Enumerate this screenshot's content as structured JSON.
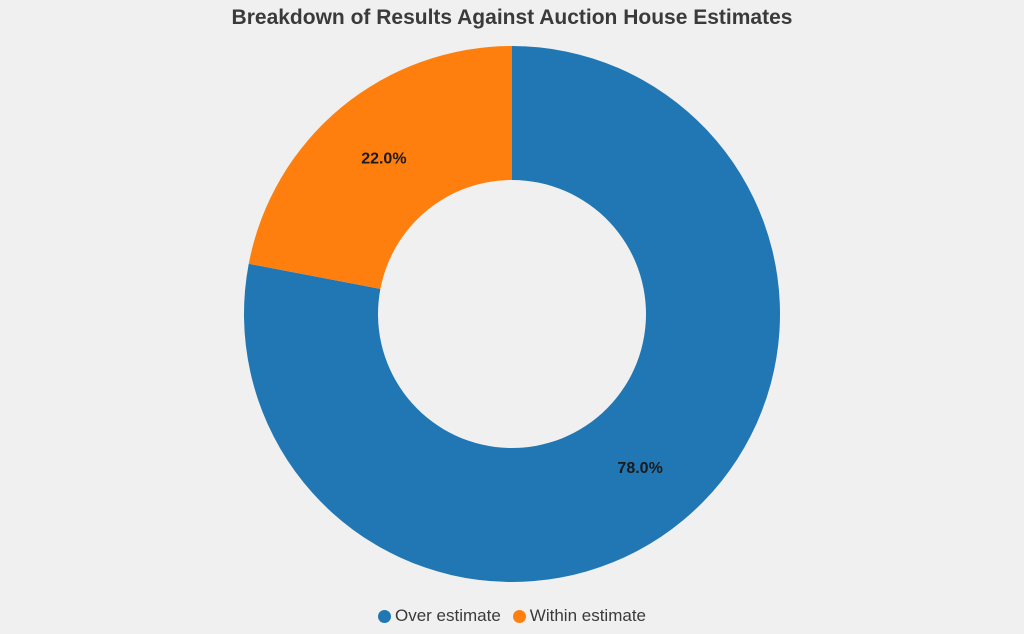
{
  "chart_data": {
    "type": "pie",
    "title": "Breakdown of Results Against Auction House Estimates",
    "donut": true,
    "slices": [
      {
        "name": "Over estimate",
        "value": 78.0,
        "label": "78.0%",
        "color": "#2077b4"
      },
      {
        "name": "Within estimate",
        "value": 22.0,
        "label": "22.0%",
        "color": "#ff7f0e"
      }
    ],
    "legend_position": "bottom"
  }
}
